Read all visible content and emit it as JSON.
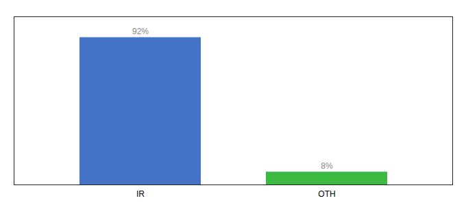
{
  "chart_data": {
    "type": "bar",
    "categories": [
      "IR",
      "OTH"
    ],
    "values": [
      92,
      8
    ],
    "value_labels": [
      "92%",
      "8%"
    ],
    "colors": [
      "#4472c4",
      "#3cb943"
    ],
    "ylim": [
      0,
      105
    ],
    "data_labels": true,
    "tick_labels": "x"
  }
}
